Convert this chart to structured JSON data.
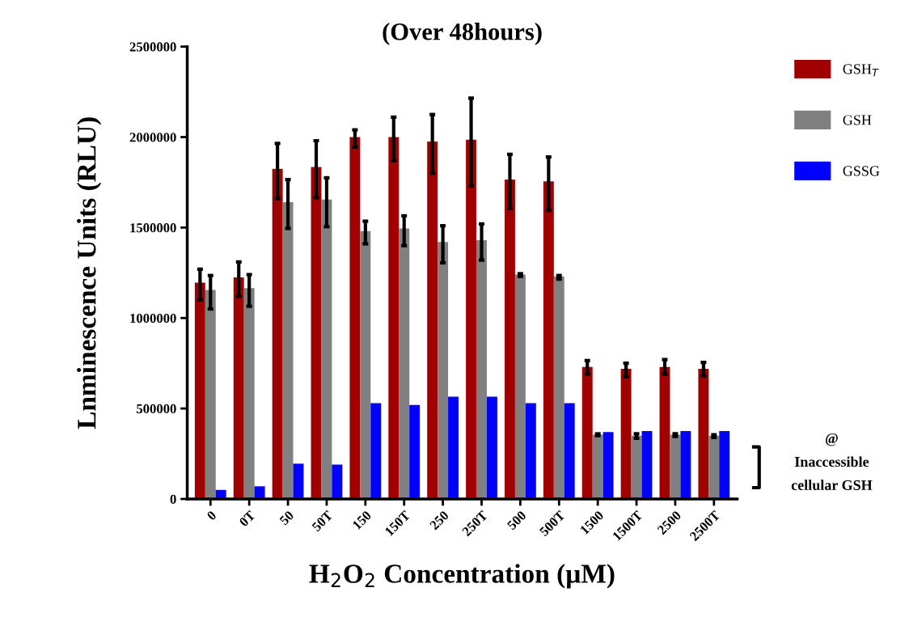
{
  "chart_data": {
    "type": "bar",
    "title": "(Over 48hours)",
    "xlabel": "H$_{2}$O$_{2}$ Concentration (µM)",
    "ylabel": "Lnminescence Units (RLU)",
    "categories": [
      "0",
      "0T",
      "50",
      "50T",
      "150",
      "150T",
      "250",
      "250T",
      "500",
      "500T",
      "1500",
      "1500T",
      "2500",
      "2500T"
    ],
    "series": [
      {
        "name": "GSH$_{T}$",
        "color": "#a00000",
        "values": [
          1195000,
          1225000,
          1825000,
          1835000,
          2000000,
          2000000,
          1975000,
          1985000,
          1765000,
          1755000,
          730000,
          720000,
          730000,
          720000
        ],
        "errors": [
          [
            1100000,
            1270000
          ],
          [
            1120000,
            1310000
          ],
          [
            1660000,
            1965000
          ],
          [
            1665000,
            1980000
          ],
          [
            1945000,
            2040000
          ],
          [
            1870000,
            2110000
          ],
          [
            1800000,
            2125000
          ],
          [
            1730000,
            2215000
          ],
          [
            1605000,
            1905000
          ],
          [
            1595000,
            1890000
          ],
          [
            690000,
            765000
          ],
          [
            675000,
            750000
          ],
          [
            690000,
            770000
          ],
          [
            680000,
            755000
          ]
        ]
      },
      {
        "name": "GSH",
        "color": "#808080",
        "values": [
          1155000,
          1165000,
          1640000,
          1655000,
          1480000,
          1495000,
          1420000,
          1430000,
          1240000,
          1230000,
          355000,
          350000,
          355000,
          350000
        ],
        "errors": [
          [
            1050000,
            1235000
          ],
          [
            1065000,
            1240000
          ],
          [
            1495000,
            1765000
          ],
          [
            1505000,
            1775000
          ],
          [
            1410000,
            1535000
          ],
          [
            1400000,
            1565000
          ],
          [
            1305000,
            1510000
          ],
          [
            1320000,
            1520000
          ],
          [
            1230000,
            1245000
          ],
          [
            1215000,
            1235000
          ],
          [
            350000,
            360000
          ],
          [
            335000,
            360000
          ],
          [
            345000,
            360000
          ],
          [
            340000,
            355000
          ]
        ]
      },
      {
        "name": "GSSG",
        "color": "#0000ff",
        "values": [
          50000,
          70000,
          195000,
          190000,
          530000,
          520000,
          565000,
          565000,
          530000,
          530000,
          370000,
          375000,
          375000,
          375000
        ]
      }
    ],
    "ylim": [
      0,
      2500000
    ],
    "yticks": [
      0,
      500000,
      1000000,
      1500000,
      2000000,
      2500000
    ],
    "grid": false,
    "legend": "top right",
    "annotations": [
      "@\nInaccessible\ncellular GSH"
    ]
  }
}
